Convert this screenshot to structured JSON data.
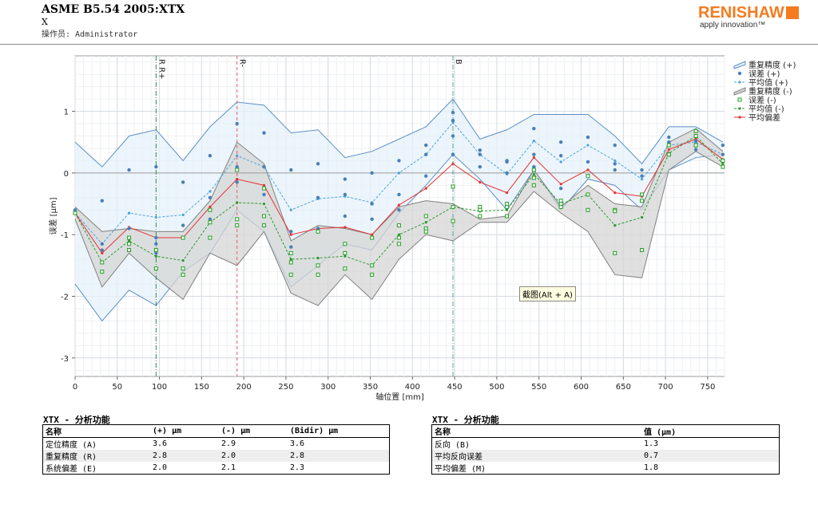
{
  "header": {
    "title": "ASME B5.54 2005:XTX",
    "axis": "X",
    "operator": "操作员: Administrator"
  },
  "logo": {
    "brand": "RENISHAW",
    "tagline": "apply innovation™",
    "color": "#f47b20"
  },
  "tooltip": "截图(Alt + A)",
  "chart_data": {
    "type": "line",
    "xlabel": "轴位置 [mm]",
    "ylabel": "误差 [µm]",
    "xlim": [
      0,
      770
    ],
    "ylim": [
      -3.3,
      1.9
    ],
    "xticks": [
      0,
      50,
      100,
      150,
      200,
      250,
      300,
      350,
      400,
      450,
      500,
      550,
      600,
      650,
      700,
      750
    ],
    "yticks": [
      -3,
      -2,
      -1,
      0,
      1
    ],
    "x": [
      0,
      32,
      64,
      96,
      128,
      160,
      192,
      224,
      256,
      288,
      320,
      352,
      384,
      416,
      448,
      480,
      512,
      544,
      576,
      608,
      640,
      672,
      704,
      736,
      768
    ],
    "markers": [
      {
        "x": 96,
        "label": "R R+",
        "color": "#2e8b57",
        "style": "dash-dot"
      },
      {
        "x": 192,
        "label": "R-",
        "color": "#e06060",
        "style": "dash"
      },
      {
        "x": 448,
        "label": "B",
        "color": "#5aa39a",
        "style": "dash-dot"
      }
    ],
    "series": [
      {
        "name": "重复精度 (+)",
        "type": "band",
        "color": "#5b8fc7",
        "fill": "#e6f2fa",
        "upper": [
          0.5,
          0.1,
          0.6,
          0.7,
          0.2,
          0.75,
          1.15,
          1.1,
          0.65,
          0.7,
          0.25,
          0.35,
          0.55,
          0.75,
          1.2,
          0.55,
          0.7,
          0.95,
          0.95,
          0.95,
          0.6,
          0.15,
          0.75,
          0.75,
          0.5
        ],
        "lower": [
          -1.8,
          -2.4,
          -1.9,
          -2.15,
          -1.6,
          -1.3,
          -0.6,
          -0.95,
          -1.85,
          -1.5,
          -1.15,
          -1.25,
          -0.65,
          -0.2,
          0.3,
          -0.1,
          -0.6,
          0.05,
          -0.6,
          -0.1,
          -0.2,
          -0.6,
          0.05,
          0.25,
          0.3
        ]
      },
      {
        "name": "误差 (+)",
        "type": "dots",
        "color": "#4a7fb5",
        "points": [
          [
            0,
            -0.6
          ],
          [
            0,
            -0.65
          ],
          [
            32,
            -0.45
          ],
          [
            32,
            -1.15
          ],
          [
            32,
            -1.25
          ],
          [
            64,
            0.05
          ],
          [
            64,
            -0.9
          ],
          [
            96,
            0.1
          ],
          [
            96,
            -1.05
          ],
          [
            96,
            -1.15
          ],
          [
            96,
            -1.3
          ],
          [
            128,
            -0.15
          ],
          [
            128,
            -0.85
          ],
          [
            128,
            -1.05
          ],
          [
            160,
            0.28
          ],
          [
            160,
            -0.4
          ],
          [
            160,
            -0.75
          ],
          [
            192,
            0.8
          ],
          [
            192,
            0.1
          ],
          [
            192,
            -0.15
          ],
          [
            224,
            0.65
          ],
          [
            224,
            0.1
          ],
          [
            224,
            -0.35
          ],
          [
            256,
            0.05
          ],
          [
            256,
            -0.95
          ],
          [
            256,
            -1.2
          ],
          [
            288,
            0.15
          ],
          [
            288,
            -0.4
          ],
          [
            288,
            -0.9
          ],
          [
            320,
            -0.1
          ],
          [
            320,
            -0.35
          ],
          [
            320,
            -0.7
          ],
          [
            352,
            0.0
          ],
          [
            352,
            -0.5
          ],
          [
            352,
            -0.75
          ],
          [
            384,
            0.2
          ],
          [
            384,
            -0.35
          ],
          [
            384,
            -0.6
          ],
          [
            416,
            0.45
          ],
          [
            416,
            0.3
          ],
          [
            416,
            -0.05
          ],
          [
            448,
            0.98
          ],
          [
            448,
            0.85
          ],
          [
            448,
            0.6
          ],
          [
            448,
            0.3
          ],
          [
            480,
            0.37
          ],
          [
            480,
            0.3
          ],
          [
            480,
            0.1
          ],
          [
            512,
            0.2
          ],
          [
            512,
            0.18
          ],
          [
            512,
            0.0
          ],
          [
            544,
            0.72
          ],
          [
            544,
            0.3
          ],
          [
            544,
            0.1
          ],
          [
            576,
            0.5
          ],
          [
            576,
            0.28
          ],
          [
            576,
            -0.25
          ],
          [
            608,
            0.58
          ],
          [
            608,
            0.18
          ],
          [
            640,
            0.45
          ],
          [
            640,
            0.15
          ],
          [
            640,
            0.05
          ],
          [
            672,
            0.05
          ],
          [
            672,
            -0.05
          ],
          [
            704,
            0.58
          ],
          [
            704,
            0.5
          ],
          [
            704,
            0.3
          ],
          [
            736,
            0.52
          ],
          [
            736,
            0.45
          ],
          [
            736,
            0.38
          ],
          [
            768,
            0.45
          ],
          [
            768,
            0.3
          ],
          [
            768,
            0.1
          ]
        ]
      },
      {
        "name": "平均值 (+)",
        "type": "line",
        "color": "#4aa3df",
        "dash": "3,2",
        "values": [
          -0.65,
          -1.15,
          -0.65,
          -0.72,
          -0.68,
          -0.3,
          0.28,
          0.1,
          -0.6,
          -0.42,
          -0.38,
          -0.48,
          0.0,
          0.3,
          0.82,
          0.3,
          -0.02,
          0.52,
          0.18,
          0.45,
          0.2,
          -0.1,
          0.45,
          0.5,
          0.3
        ]
      },
      {
        "name": "重复精度 (-)",
        "type": "band",
        "color": "#808080",
        "fill": "#d6d6d6",
        "upper": [
          -0.55,
          -0.95,
          -0.9,
          -0.95,
          -0.95,
          -0.45,
          0.5,
          0.15,
          -1.1,
          -0.85,
          -0.9,
          -1.0,
          -0.55,
          -0.45,
          -0.5,
          -0.75,
          -0.7,
          0.05,
          -0.55,
          -0.2,
          -0.5,
          -0.55,
          0.5,
          0.72,
          0.35
        ],
        "lower": [
          -0.75,
          -1.85,
          -1.3,
          -1.7,
          -2.05,
          -1.3,
          -1.5,
          -0.95,
          -1.95,
          -2.15,
          -1.65,
          -2.05,
          -1.4,
          -1.0,
          -1.1,
          -0.8,
          -0.8,
          -0.3,
          -0.65,
          -0.95,
          -1.65,
          -1.7,
          0.05,
          0.35,
          0.1
        ]
      },
      {
        "name": "误差 (-)",
        "type": "squares",
        "color": "#22a022",
        "points": [
          [
            0,
            -0.65
          ],
          [
            32,
            -1.45
          ],
          [
            32,
            -1.6
          ],
          [
            64,
            -1.05
          ],
          [
            64,
            -1.15
          ],
          [
            64,
            -1.25
          ],
          [
            96,
            -1.25
          ],
          [
            96,
            -1.55
          ],
          [
            128,
            -1.05
          ],
          [
            128,
            -1.55
          ],
          [
            128,
            -1.65
          ],
          [
            160,
            -0.6
          ],
          [
            160,
            -0.8
          ],
          [
            160,
            -1.05
          ],
          [
            192,
            0.05
          ],
          [
            192,
            -0.75
          ],
          [
            192,
            -0.85
          ],
          [
            224,
            -0.25
          ],
          [
            224,
            -0.7
          ],
          [
            224,
            -0.85
          ],
          [
            256,
            -1.3
          ],
          [
            256,
            -1.45
          ],
          [
            256,
            -1.65
          ],
          [
            288,
            -0.95
          ],
          [
            288,
            -1.5
          ],
          [
            288,
            -1.65
          ],
          [
            320,
            -1.15
          ],
          [
            320,
            -1.3
          ],
          [
            320,
            -1.55
          ],
          [
            352,
            -1.05
          ],
          [
            352,
            -1.5
          ],
          [
            352,
            -1.65
          ],
          [
            384,
            -0.85
          ],
          [
            384,
            -1.05
          ],
          [
            384,
            -1.15
          ],
          [
            416,
            -0.7
          ],
          [
            416,
            -0.9
          ],
          [
            416,
            -0.95
          ],
          [
            448,
            -0.22
          ],
          [
            448,
            -0.55
          ],
          [
            448,
            -0.78
          ],
          [
            480,
            -0.55
          ],
          [
            480,
            -0.6
          ],
          [
            480,
            -0.7
          ],
          [
            512,
            -0.5
          ],
          [
            512,
            -0.55
          ],
          [
            512,
            -0.7
          ],
          [
            544,
            0.05
          ],
          [
            544,
            -0.08
          ],
          [
            544,
            -0.2
          ],
          [
            576,
            -0.45
          ],
          [
            576,
            -0.5
          ],
          [
            576,
            -0.55
          ],
          [
            608,
            -0.05
          ],
          [
            608,
            -0.35
          ],
          [
            608,
            -0.6
          ],
          [
            640,
            -0.6
          ],
          [
            640,
            -0.62
          ],
          [
            640,
            -1.3
          ],
          [
            672,
            -0.35
          ],
          [
            672,
            -0.45
          ],
          [
            672,
            -1.25
          ],
          [
            704,
            0.45
          ],
          [
            704,
            0.3
          ],
          [
            704,
            0.3
          ],
          [
            736,
            0.68
          ],
          [
            736,
            0.6
          ],
          [
            736,
            0.45
          ],
          [
            768,
            0.2
          ],
          [
            768,
            0.1
          ]
        ]
      },
      {
        "name": "平均值 (-)",
        "type": "line",
        "color": "#2a9a2a",
        "dash": "3,2",
        "values": [
          -0.65,
          -1.45,
          -1.1,
          -1.35,
          -1.42,
          -0.8,
          -0.48,
          -0.5,
          -1.4,
          -1.38,
          -1.35,
          -1.5,
          -1.0,
          -0.8,
          -0.55,
          -0.62,
          -0.6,
          -0.02,
          -0.5,
          -0.35,
          -0.85,
          -0.72,
          0.32,
          0.6,
          0.15
        ]
      },
      {
        "name": "平均偏差",
        "type": "line",
        "color": "#e53030",
        "dash": "",
        "values": [
          -0.65,
          -1.3,
          -0.88,
          -1.05,
          -1.05,
          -0.55,
          -0.1,
          -0.2,
          -1.0,
          -0.9,
          -0.88,
          -1.0,
          -0.52,
          -0.25,
          0.15,
          -0.15,
          -0.32,
          0.25,
          -0.18,
          0.05,
          -0.32,
          -0.38,
          0.38,
          0.55,
          0.22
        ]
      }
    ]
  },
  "table_left": {
    "title": "XTX - 分析功能",
    "headers": [
      "名称",
      "(+) µm",
      "(-) µm",
      "(Bidir) µm"
    ],
    "rows": [
      [
        "定位精度 (A)",
        "3.6",
        "2.9",
        "3.6"
      ],
      [
        "重复精度 (R)",
        "2.8",
        "2.0",
        "2.8"
      ],
      [
        "系统偏差 (E)",
        "2.0",
        "2.1",
        "2.3"
      ]
    ]
  },
  "table_right": {
    "title": "XTX - 分析功能",
    "headers": [
      "名称",
      "值 (µm)"
    ],
    "rows": [
      [
        "反向 (B)",
        "1.3"
      ],
      [
        "平均反向误差",
        "0.7"
      ],
      [
        "平均偏差 (M)",
        "1.8"
      ]
    ]
  }
}
